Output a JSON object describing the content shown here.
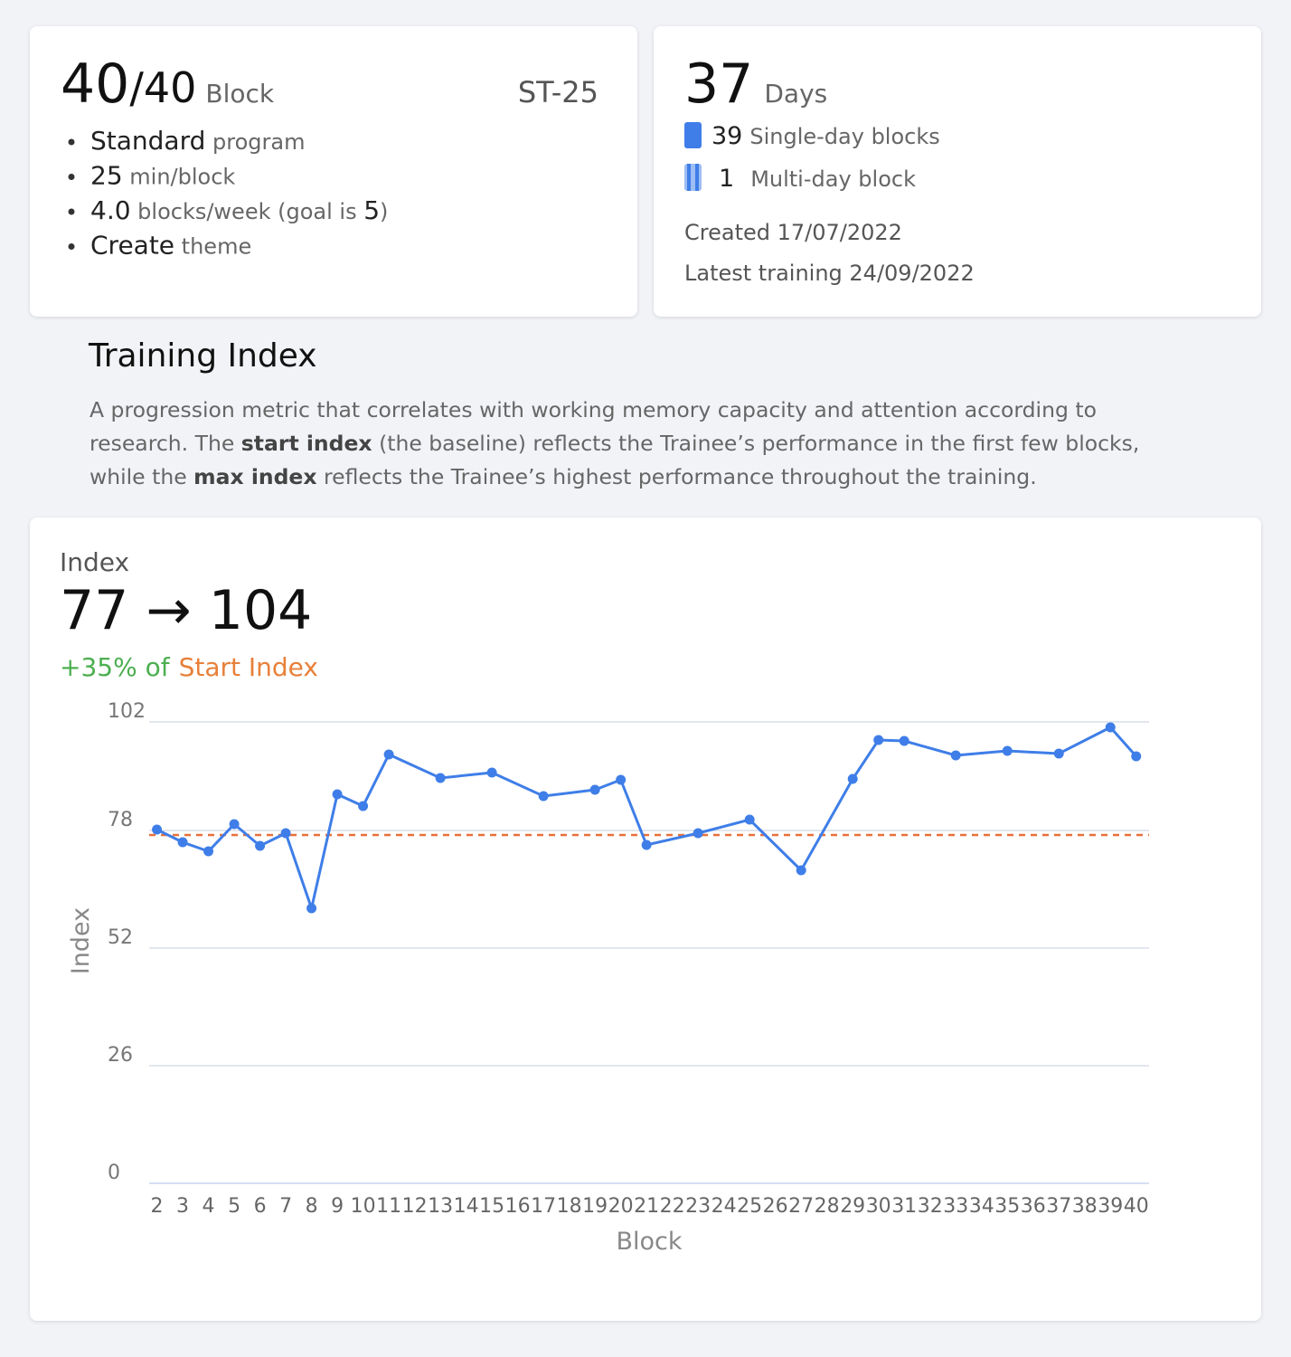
{
  "summary": {
    "blocks_done": "40",
    "blocks_total": "/40",
    "blocks_unit": "Block",
    "program_code": "ST-25",
    "details": [
      [
        {
          "text": "Standard",
          "strong": true
        },
        {
          "text": " program"
        }
      ],
      [
        {
          "text": "25",
          "strong": true
        },
        {
          "text": " min/block"
        }
      ],
      [
        {
          "text": "4.0",
          "strong": true
        },
        {
          "text": " blocks/week (goal is "
        },
        {
          "text": "5",
          "strong": true
        },
        {
          "text": ")"
        }
      ],
      [
        {
          "text": "Create",
          "strong": true
        },
        {
          "text": " theme"
        }
      ]
    ]
  },
  "calendar": {
    "days": "37",
    "days_unit": "Days",
    "single_day_count": "39",
    "single_day_label": "Single-day blocks",
    "multi_day_count": "1",
    "multi_day_label": "Multi-day block",
    "created": "Created 17/07/2022",
    "latest": "Latest training 24/09/2022"
  },
  "section": {
    "title": "Training Index",
    "description": [
      [
        {
          "text": "A progression metric that correlates with working memory capacity and attention according to"
        }
      ],
      [
        {
          "text": "research. The "
        },
        {
          "text": "start index",
          "strong": true
        },
        {
          "text": " (the baseline) reflects the Trainee’s performance in the first few blocks,"
        }
      ],
      [
        {
          "text": "while the "
        },
        {
          "text": "max index",
          "strong": true
        },
        {
          "text": " reflects the Trainee’s highest performance throughout the training."
        }
      ]
    ]
  },
  "index_card": {
    "label": "Index",
    "range": "77 → 104",
    "change": "+35% of",
    "reference": "Start Index"
  },
  "chart_data": {
    "type": "line",
    "xlabel": "Block",
    "ylabel": "Index",
    "color": "#3f7ee8",
    "grid": true,
    "x": [
      2,
      3,
      4,
      5,
      6,
      7,
      8,
      9,
      10,
      11,
      13,
      15,
      17,
      19,
      20,
      21,
      23,
      25,
      27,
      29,
      30,
      31,
      33,
      35,
      37,
      39,
      40
    ],
    "values": [
      78.2,
      75.4,
      73.4,
      79.4,
      74.6,
      77.4,
      60.8,
      86,
      83.4,
      94.8,
      89.6,
      90.8,
      85.6,
      87,
      89.2,
      74.8,
      77.4,
      80.4,
      69.2,
      89.4,
      98,
      97.8,
      94.6,
      95.6,
      95,
      100.8,
      94.4
    ],
    "xlim": [
      1.7,
      40.5
    ],
    "xticks": [
      2,
      3,
      4,
      5,
      6,
      7,
      8,
      9,
      10,
      11,
      12,
      13,
      14,
      15,
      16,
      17,
      18,
      19,
      20,
      21,
      22,
      23,
      24,
      25,
      26,
      27,
      28,
      29,
      30,
      31,
      32,
      33,
      34,
      35,
      36,
      37,
      38,
      39,
      40
    ],
    "ylim": [
      0,
      102
    ],
    "yticks": [
      0,
      26,
      52,
      78,
      102
    ],
    "reference_line": {
      "value": 77,
      "color": "#e8703a",
      "dashed": true
    }
  }
}
